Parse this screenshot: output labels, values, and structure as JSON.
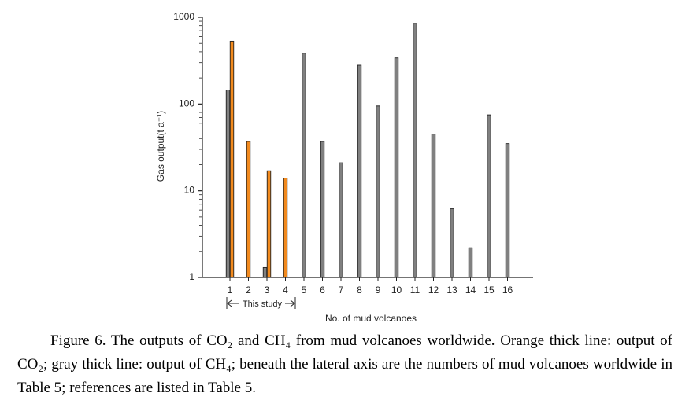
{
  "chart_data": {
    "type": "bar",
    "scale": "log",
    "ylabel": "Gas output(t a⁻¹)",
    "xlabel": "No. of mud volcanoes",
    "ylim": [
      1,
      1000
    ],
    "yticks": [
      "1",
      "10",
      "100",
      "1000"
    ],
    "categories": [
      "1",
      "2",
      "3",
      "4",
      "5",
      "6",
      "7",
      "8",
      "9",
      "10",
      "11",
      "12",
      "13",
      "14",
      "15",
      "16"
    ],
    "series": [
      {
        "color": "#808080",
        "values": [
          145,
          null,
          1.3,
          null,
          385,
          37,
          21,
          280,
          95,
          340,
          850,
          45,
          6.2,
          2.2,
          75,
          35
        ]
      },
      {
        "color": "#f28a1e",
        "values": [
          530,
          37,
          17,
          14,
          null,
          null,
          null,
          null,
          null,
          null,
          null,
          null,
          null,
          null,
          null,
          null
        ]
      }
    ],
    "bracket_label": "This study",
    "grid": false
  },
  "caption": "Figure 6. The outputs of CO₂ and CH₄ from mud volcanoes worldwide. Orange thick line: output of CO₂; gray thick line: output of CH₄; beneath the lateral axis are the numbers of mud volcanoes worldwide in Table 5; references are listed in Table 5."
}
